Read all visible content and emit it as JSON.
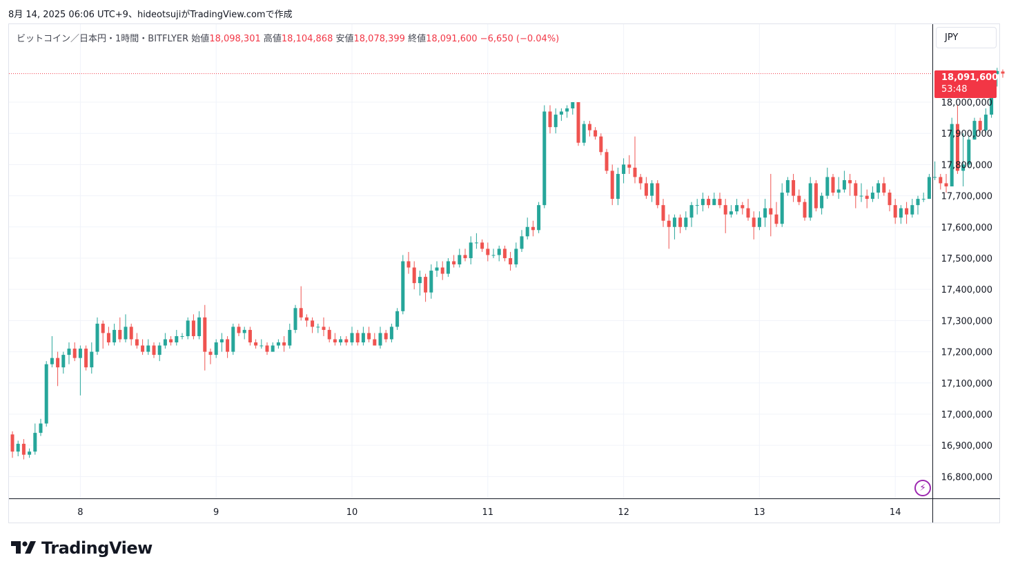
{
  "header": {
    "caption": "8月 14, 2025 06:06 UTC+9、hideotsujiがTradingView.comで作成"
  },
  "legend": {
    "symbol": "ビットコイン／日本円・1時間・BITFLYER",
    "open_label": "始値",
    "open": "18,098,301",
    "high_label": "高値",
    "high": "18,104,868",
    "low_label": "安値",
    "low": "18,078,399",
    "close_label": "終値",
    "close": "18,091,600",
    "change": "−6,650 (−0.04%)"
  },
  "currency": "JPY",
  "last_price": {
    "price": "18,091,600",
    "countdown": "53:48",
    "value": 18091600
  },
  "brand": {
    "name": "TradingView"
  },
  "colors": {
    "up": "#26a69a",
    "down": "#ef5350",
    "grid": "#f0f3fa",
    "axis": "#131722"
  },
  "chart_data": {
    "type": "candlestick",
    "title": "",
    "xlabel": "",
    "ylabel": "",
    "ylim": [
      16730000,
      18250000
    ],
    "y_ticks": [
      16800000,
      16900000,
      17000000,
      17100000,
      17200000,
      17300000,
      17400000,
      17500000,
      17600000,
      17700000,
      17800000,
      17900000,
      18000000
    ],
    "y_tick_labels": [
      "16,800,000",
      "16,900,000",
      "17,000,000",
      "17,100,000",
      "17,200,000",
      "17,300,000",
      "17,400,000",
      "17,500,000",
      "17,600,000",
      "17,700,000",
      "17,800,000",
      "17,900,000",
      "18,000,000"
    ],
    "x_tick_labels": [
      "8",
      "9",
      "10",
      "11",
      "12",
      "13",
      "14"
    ],
    "x_tick_index": [
      12,
      36,
      60,
      84,
      108,
      132,
      156
    ],
    "grid": true,
    "candles": [
      [
        16935000,
        16880000,
        16945000,
        16860000
      ],
      [
        16880000,
        16905000,
        16915000,
        16865000
      ],
      [
        16905000,
        16870000,
        16920000,
        16855000
      ],
      [
        16870000,
        16880000,
        16890000,
        16860000
      ],
      [
        16880000,
        16940000,
        16970000,
        16870000
      ],
      [
        16940000,
        16970000,
        16985000,
        16930000
      ],
      [
        16970000,
        17160000,
        17170000,
        16960000
      ],
      [
        17160000,
        17180000,
        17250000,
        17150000
      ],
      [
        17180000,
        17150000,
        17200000,
        17090000
      ],
      [
        17150000,
        17190000,
        17200000,
        17130000
      ],
      [
        17190000,
        17210000,
        17230000,
        17160000
      ],
      [
        17210000,
        17180000,
        17230000,
        17170000
      ],
      [
        17180000,
        17210000,
        17220000,
        17060000
      ],
      [
        17210000,
        17150000,
        17220000,
        17140000
      ],
      [
        17150000,
        17200000,
        17230000,
        17130000
      ],
      [
        17200000,
        17290000,
        17310000,
        17190000
      ],
      [
        17290000,
        17260000,
        17300000,
        17210000
      ],
      [
        17260000,
        17230000,
        17280000,
        17220000
      ],
      [
        17230000,
        17270000,
        17290000,
        17220000
      ],
      [
        17270000,
        17240000,
        17310000,
        17230000
      ],
      [
        17240000,
        17280000,
        17320000,
        17230000
      ],
      [
        17280000,
        17240000,
        17290000,
        17220000
      ],
      [
        17240000,
        17220000,
        17260000,
        17210000
      ],
      [
        17220000,
        17200000,
        17240000,
        17190000
      ],
      [
        17200000,
        17220000,
        17240000,
        17190000
      ],
      [
        17220000,
        17190000,
        17230000,
        17180000
      ],
      [
        17190000,
        17220000,
        17230000,
        17170000
      ],
      [
        17220000,
        17240000,
        17260000,
        17210000
      ],
      [
        17240000,
        17230000,
        17250000,
        17220000
      ],
      [
        17230000,
        17250000,
        17270000,
        17220000
      ],
      [
        17250000,
        17250000,
        17260000,
        17240000
      ],
      [
        17250000,
        17300000,
        17310000,
        17240000
      ],
      [
        17300000,
        17250000,
        17320000,
        17240000
      ],
      [
        17250000,
        17310000,
        17330000,
        17240000
      ],
      [
        17310000,
        17200000,
        17350000,
        17140000
      ],
      [
        17200000,
        17190000,
        17210000,
        17160000
      ],
      [
        17190000,
        17230000,
        17240000,
        17180000
      ],
      [
        17230000,
        17240000,
        17260000,
        17200000
      ],
      [
        17240000,
        17200000,
        17250000,
        17180000
      ],
      [
        17200000,
        17280000,
        17290000,
        17190000
      ],
      [
        17280000,
        17260000,
        17290000,
        17250000
      ],
      [
        17260000,
        17270000,
        17280000,
        17240000
      ],
      [
        17270000,
        17230000,
        17280000,
        17220000
      ],
      [
        17230000,
        17220000,
        17240000,
        17210000
      ],
      [
        17220000,
        17220000,
        17240000,
        17210000
      ],
      [
        17220000,
        17200000,
        17230000,
        17190000
      ],
      [
        17200000,
        17220000,
        17230000,
        17200000
      ],
      [
        17220000,
        17230000,
        17240000,
        17210000
      ],
      [
        17230000,
        17220000,
        17250000,
        17200000
      ],
      [
        17220000,
        17270000,
        17290000,
        17210000
      ],
      [
        17270000,
        17340000,
        17350000,
        17260000
      ],
      [
        17340000,
        17310000,
        17410000,
        17300000
      ],
      [
        17310000,
        17300000,
        17320000,
        17280000
      ],
      [
        17300000,
        17280000,
        17310000,
        17260000
      ],
      [
        17280000,
        17280000,
        17290000,
        17260000
      ],
      [
        17280000,
        17270000,
        17310000,
        17250000
      ],
      [
        17270000,
        17240000,
        17280000,
        17230000
      ],
      [
        17240000,
        17230000,
        17260000,
        17220000
      ],
      [
        17230000,
        17240000,
        17250000,
        17220000
      ],
      [
        17240000,
        17230000,
        17250000,
        17220000
      ],
      [
        17230000,
        17260000,
        17280000,
        17220000
      ],
      [
        17260000,
        17230000,
        17270000,
        17220000
      ],
      [
        17230000,
        17260000,
        17280000,
        17220000
      ],
      [
        17260000,
        17240000,
        17280000,
        17230000
      ],
      [
        17240000,
        17220000,
        17260000,
        17220000
      ],
      [
        17220000,
        17260000,
        17280000,
        17210000
      ],
      [
        17260000,
        17240000,
        17270000,
        17230000
      ],
      [
        17240000,
        17280000,
        17290000,
        17230000
      ],
      [
        17280000,
        17330000,
        17340000,
        17270000
      ],
      [
        17330000,
        17490000,
        17510000,
        17320000
      ],
      [
        17490000,
        17470000,
        17520000,
        17450000
      ],
      [
        17470000,
        17420000,
        17490000,
        17400000
      ],
      [
        17420000,
        17440000,
        17460000,
        17380000
      ],
      [
        17440000,
        17390000,
        17450000,
        17360000
      ],
      [
        17390000,
        17460000,
        17480000,
        17370000
      ],
      [
        17460000,
        17470000,
        17490000,
        17440000
      ],
      [
        17470000,
        17450000,
        17490000,
        17430000
      ],
      [
        17450000,
        17490000,
        17500000,
        17440000
      ],
      [
        17490000,
        17480000,
        17510000,
        17470000
      ],
      [
        17480000,
        17510000,
        17530000,
        17470000
      ],
      [
        17510000,
        17500000,
        17530000,
        17490000
      ],
      [
        17500000,
        17550000,
        17570000,
        17480000
      ],
      [
        17550000,
        17550000,
        17580000,
        17530000
      ],
      [
        17550000,
        17530000,
        17560000,
        17520000
      ],
      [
        17530000,
        17510000,
        17550000,
        17490000
      ],
      [
        17510000,
        17510000,
        17530000,
        17500000
      ],
      [
        17510000,
        17530000,
        17540000,
        17490000
      ],
      [
        17530000,
        17500000,
        17540000,
        17490000
      ],
      [
        17500000,
        17480000,
        17520000,
        17460000
      ],
      [
        17480000,
        17530000,
        17550000,
        17470000
      ],
      [
        17530000,
        17570000,
        17590000,
        17520000
      ],
      [
        17570000,
        17600000,
        17630000,
        17560000
      ],
      [
        17600000,
        17590000,
        17620000,
        17570000
      ],
      [
        17590000,
        17670000,
        17680000,
        17580000
      ],
      [
        17670000,
        17970000,
        17990000,
        17660000
      ],
      [
        17970000,
        17920000,
        17990000,
        17900000
      ],
      [
        17920000,
        17960000,
        17980000,
        17900000
      ],
      [
        17960000,
        17970000,
        17980000,
        17940000
      ],
      [
        17970000,
        17980000,
        17990000,
        17950000
      ],
      [
        17980000,
        18000000,
        18000000,
        17960000
      ],
      [
        18000000,
        17870000,
        18000000,
        17860000
      ],
      [
        17870000,
        17930000,
        17940000,
        17860000
      ],
      [
        17930000,
        17910000,
        17940000,
        17890000
      ],
      [
        17910000,
        17890000,
        17920000,
        17880000
      ],
      [
        17890000,
        17840000,
        17900000,
        17830000
      ],
      [
        17840000,
        17780000,
        17850000,
        17770000
      ],
      [
        17780000,
        17690000,
        17800000,
        17670000
      ],
      [
        17690000,
        17770000,
        17790000,
        17670000
      ],
      [
        17770000,
        17800000,
        17820000,
        17740000
      ],
      [
        17800000,
        17790000,
        17830000,
        17770000
      ],
      [
        17790000,
        17760000,
        17890000,
        17740000
      ],
      [
        17760000,
        17740000,
        17770000,
        17720000
      ],
      [
        17740000,
        17700000,
        17760000,
        17690000
      ],
      [
        17700000,
        17740000,
        17750000,
        17680000
      ],
      [
        17740000,
        17670000,
        17750000,
        17660000
      ],
      [
        17670000,
        17620000,
        17690000,
        17600000
      ],
      [
        17620000,
        17600000,
        17640000,
        17530000
      ],
      [
        17600000,
        17630000,
        17640000,
        17560000
      ],
      [
        17630000,
        17600000,
        17640000,
        17580000
      ],
      [
        17600000,
        17630000,
        17650000,
        17590000
      ],
      [
        17630000,
        17670000,
        17680000,
        17600000
      ],
      [
        17670000,
        17670000,
        17690000,
        17640000
      ],
      [
        17670000,
        17690000,
        17710000,
        17650000
      ],
      [
        17690000,
        17670000,
        17700000,
        17660000
      ],
      [
        17670000,
        17690000,
        17710000,
        17670000
      ],
      [
        17690000,
        17670000,
        17710000,
        17660000
      ],
      [
        17670000,
        17640000,
        17690000,
        17580000
      ],
      [
        17640000,
        17650000,
        17670000,
        17630000
      ],
      [
        17650000,
        17670000,
        17690000,
        17640000
      ],
      [
        17670000,
        17660000,
        17680000,
        17640000
      ],
      [
        17660000,
        17630000,
        17690000,
        17620000
      ],
      [
        17630000,
        17600000,
        17650000,
        17560000
      ],
      [
        17600000,
        17630000,
        17650000,
        17590000
      ],
      [
        17630000,
        17660000,
        17690000,
        17600000
      ],
      [
        17660000,
        17640000,
        17770000,
        17570000
      ],
      [
        17640000,
        17610000,
        17680000,
        17600000
      ],
      [
        17610000,
        17710000,
        17740000,
        17600000
      ],
      [
        17710000,
        17750000,
        17760000,
        17700000
      ],
      [
        17750000,
        17700000,
        17770000,
        17680000
      ],
      [
        17700000,
        17680000,
        17720000,
        17670000
      ],
      [
        17680000,
        17630000,
        17690000,
        17620000
      ],
      [
        17630000,
        17740000,
        17760000,
        17620000
      ],
      [
        17740000,
        17660000,
        17750000,
        17650000
      ],
      [
        17660000,
        17700000,
        17710000,
        17640000
      ],
      [
        17700000,
        17760000,
        17790000,
        17690000
      ],
      [
        17760000,
        17710000,
        17770000,
        17700000
      ],
      [
        17710000,
        17720000,
        17760000,
        17690000
      ],
      [
        17720000,
        17750000,
        17780000,
        17710000
      ],
      [
        17750000,
        17740000,
        17770000,
        17700000
      ],
      [
        17740000,
        17700000,
        17750000,
        17660000
      ],
      [
        17700000,
        17700000,
        17740000,
        17680000
      ],
      [
        17700000,
        17690000,
        17720000,
        17660000
      ],
      [
        17690000,
        17710000,
        17730000,
        17680000
      ],
      [
        17710000,
        17740000,
        17750000,
        17690000
      ],
      [
        17740000,
        17710000,
        17760000,
        17700000
      ],
      [
        17710000,
        17670000,
        17720000,
        17650000
      ],
      [
        17670000,
        17630000,
        17690000,
        17610000
      ],
      [
        17630000,
        17660000,
        17670000,
        17610000
      ],
      [
        17660000,
        17640000,
        17680000,
        17610000
      ],
      [
        17640000,
        17670000,
        17690000,
        17630000
      ],
      [
        17670000,
        17690000,
        17700000,
        17640000
      ],
      [
        17690000,
        17690000,
        17710000,
        17680000
      ],
      [
        17690000,
        17760000,
        17770000,
        17690000
      ],
      [
        17760000,
        17760000,
        17810000,
        17750000
      ],
      [
        17760000,
        17740000,
        17770000,
        17720000
      ],
      [
        17740000,
        17730000,
        17770000,
        17710000
      ],
      [
        17730000,
        17930000,
        17950000,
        17730000
      ],
      [
        17930000,
        17780000,
        17990000,
        17770000
      ],
      [
        17780000,
        17800000,
        17900000,
        17730000
      ],
      [
        17800000,
        17880000,
        17890000,
        17790000
      ],
      [
        17880000,
        17940000,
        17950000,
        17880000
      ],
      [
        17940000,
        17910000,
        17950000,
        17900000
      ],
      [
        17910000,
        17960000,
        17980000,
        17900000
      ],
      [
        17960000,
        18090000,
        18100000,
        17950000
      ],
      [
        18090000,
        18100000,
        18110000,
        18050000
      ],
      [
        18098301,
        18091600,
        18104868,
        18078399
      ]
    ]
  }
}
